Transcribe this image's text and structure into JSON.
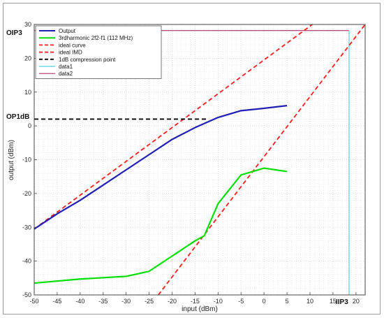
{
  "chart_data": {
    "type": "line",
    "xlabel": "input (dBm)",
    "ylabel": "output (dBm)",
    "xlim": [
      -50,
      22
    ],
    "ylim": [
      -50,
      30
    ],
    "xticks": [
      -50,
      -45,
      -40,
      -35,
      -30,
      -25,
      -20,
      -15,
      -10,
      -5,
      0,
      5,
      10,
      15,
      20
    ],
    "yticks": [
      -50,
      -40,
      -30,
      -20,
      -10,
      0,
      10,
      20,
      30
    ],
    "grid": true,
    "legend_position": "top-left",
    "annotations": {
      "oip3": {
        "text": "OIP3",
        "y": 28.2
      },
      "op1db": {
        "text": "OP1dB",
        "y": 2
      },
      "iip3": {
        "text": "IIP3",
        "x": 18.5
      }
    },
    "series": [
      {
        "name": "Output",
        "color": "#1f1fb4",
        "style": "solid",
        "x": [
          -50,
          -45,
          -40,
          -35,
          -30,
          -25,
          -20,
          -15,
          -10,
          -5,
          0,
          5
        ],
        "y": [
          -30.5,
          -26,
          -22,
          -17.5,
          -13,
          -8.5,
          -4,
          -0.5,
          2.5,
          4.5,
          5.2,
          6
        ]
      },
      {
        "name": "3rdharmonic 2f2-f1 (112 MHz)",
        "color": "#00e000",
        "style": "solid",
        "x": [
          -50,
          -40,
          -30,
          -25,
          -20,
          -15,
          -13,
          -10,
          -5,
          0,
          5
        ],
        "y": [
          -46.5,
          -45.3,
          -44.5,
          -43,
          -38.5,
          -34,
          -32.5,
          -23,
          -14.5,
          -12.5,
          -13.5
        ]
      },
      {
        "name": "ideal curve",
        "color": "#ff1a1a",
        "style": "dashed",
        "x": [
          -50,
          22
        ],
        "y": [
          -30.5,
          41.5
        ]
      },
      {
        "name": "ideal IMD",
        "color": "#ff1a1a",
        "style": "dashed",
        "x": [
          -23,
          22
        ],
        "y": [
          -50,
          30
        ]
      },
      {
        "name": "1dB compression point",
        "color": "#000000",
        "style": "dashed",
        "x": [
          -50,
          -12
        ],
        "y": [
          2,
          2
        ]
      },
      {
        "name": "data1",
        "color": "#4fd0e0",
        "style": "solid",
        "x": [
          18.5,
          18.5
        ],
        "y": [
          -50,
          28.2
        ]
      },
      {
        "name": "data2",
        "color": "#b0306a",
        "style": "solid",
        "x": [
          -50,
          18.5
        ],
        "y": [
          28.2,
          28.2
        ]
      }
    ]
  }
}
